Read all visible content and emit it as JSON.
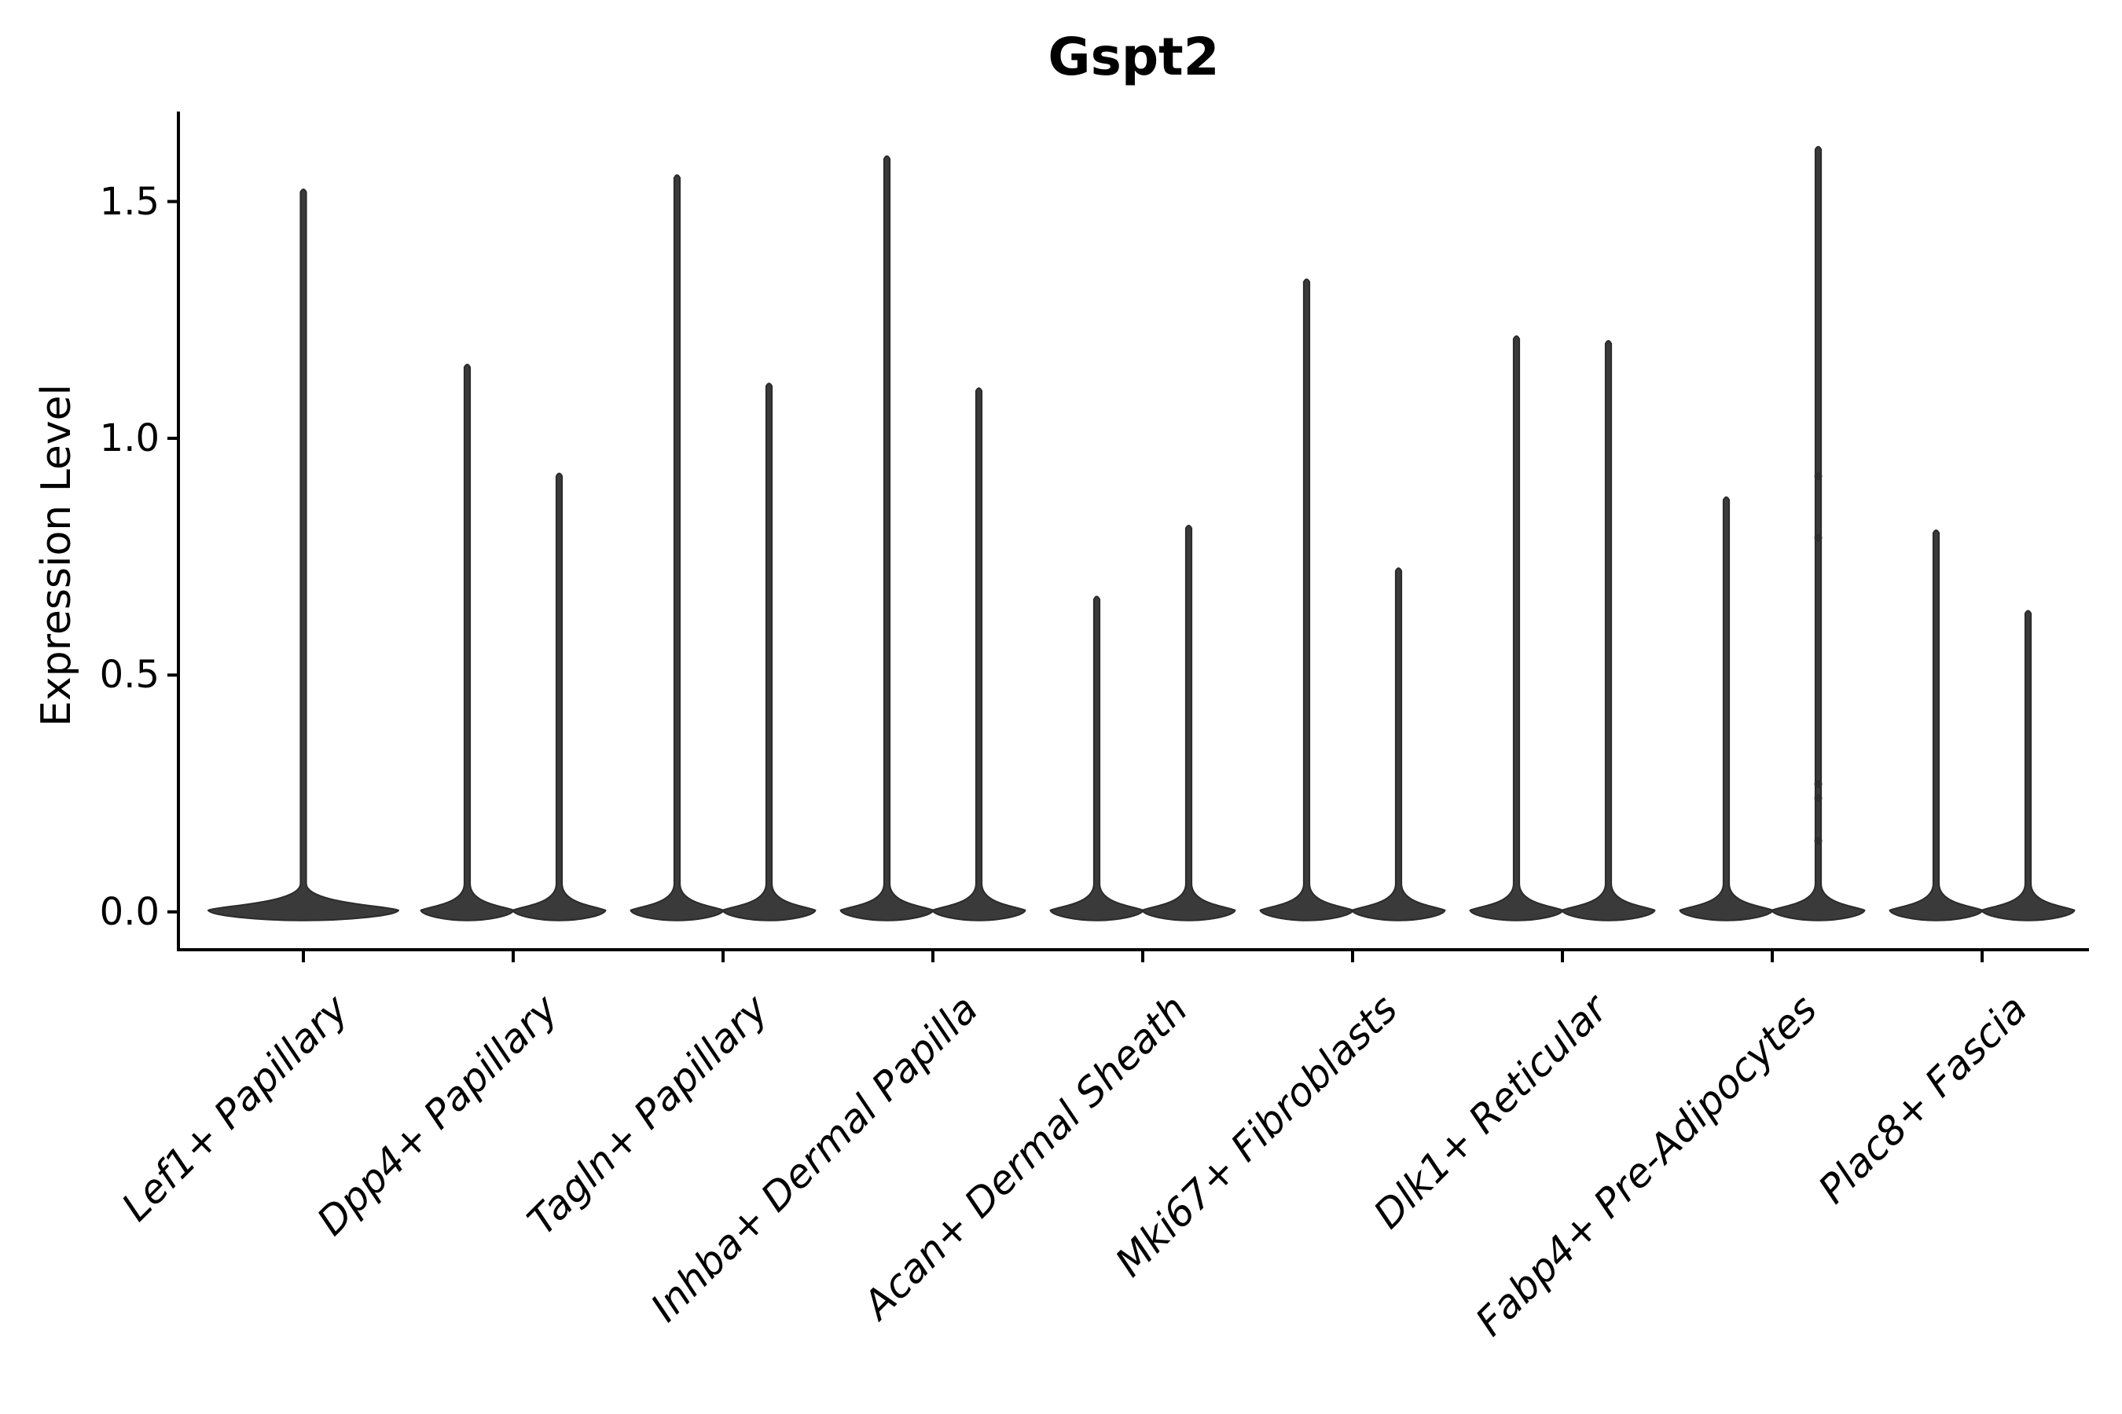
{
  "chart_data": {
    "type": "violin",
    "title": "Gspt2",
    "ylabel": "Expression Level",
    "xlabel": "",
    "grid": false,
    "legend": "none",
    "ylim": [
      -0.08,
      1.69
    ],
    "yticks": [
      {
        "label": "0.0",
        "value": 0.0
      },
      {
        "label": "0.5",
        "value": 0.5
      },
      {
        "label": "1.0",
        "value": 1.0
      },
      {
        "label": "1.5",
        "value": 1.5
      }
    ],
    "categories": [
      "Lef1+ Papillary",
      "Dpp4+ Papillary",
      "Tagln+ Papillary",
      "Inhba+ Dermal Papilla",
      "Acan+ Dermal Sheath",
      "Mki67+ Fibroblasts",
      "Dlk1+ Reticular",
      "Fabp4+ Pre-Adipocytes",
      "Plac8+ Fascia"
    ],
    "series": [
      {
        "category": "Lef1+ Papillary",
        "violins": [
          {
            "position": "center",
            "max": 1.52
          }
        ]
      },
      {
        "category": "Dpp4+ Papillary",
        "violins": [
          {
            "position": "left",
            "max": 1.15
          },
          {
            "position": "right",
            "max": 0.92
          }
        ]
      },
      {
        "category": "Tagln+ Papillary",
        "violins": [
          {
            "position": "left",
            "max": 1.55
          },
          {
            "position": "right",
            "max": 1.11
          }
        ]
      },
      {
        "category": "Inhba+ Dermal Papilla",
        "violins": [
          {
            "position": "left",
            "max": 1.59
          },
          {
            "position": "right",
            "max": 1.1
          }
        ]
      },
      {
        "category": "Acan+ Dermal Sheath",
        "violins": [
          {
            "position": "left",
            "max": 0.66
          },
          {
            "position": "right",
            "max": 0.81
          }
        ]
      },
      {
        "category": "Mki67+ Fibroblasts",
        "violins": [
          {
            "position": "left",
            "max": 1.33
          },
          {
            "position": "right",
            "max": 0.72
          }
        ]
      },
      {
        "category": "Dlk1+ Reticular",
        "violins": [
          {
            "position": "left",
            "max": 1.21
          },
          {
            "position": "right",
            "max": 1.2
          }
        ]
      },
      {
        "category": "Fabp4+ Pre-Adipocytes",
        "violins": [
          {
            "position": "left",
            "max": 0.87
          },
          {
            "position": "right",
            "max": 1.61,
            "points": [
              0.92,
              0.79,
              0.27,
              0.24,
              0.15
            ]
          }
        ]
      },
      {
        "category": "Plac8+ Fascia",
        "violins": [
          {
            "position": "left",
            "max": 0.8
          },
          {
            "position": "right",
            "max": 0.63
          }
        ]
      }
    ],
    "baseline_value": 0.0,
    "style": {
      "violin_fill": "#3a3a3a",
      "violin_stroke": "#2b2b2b",
      "point_color": "#2e2e2e",
      "axis_color": "#000000",
      "text_color": "#000000",
      "background": "#ffffff"
    }
  }
}
